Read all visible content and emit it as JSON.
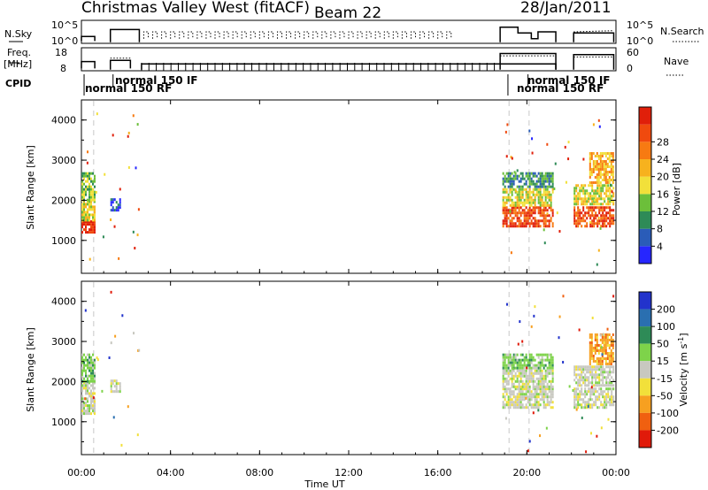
{
  "header": {
    "station": "Christmas Valley West (fitACF)",
    "beam": "Beam 22",
    "date": "28/Jan/2011"
  },
  "params": {
    "nsky_label": "N.Sky",
    "nsky_ticks": [
      "10^5",
      "10^0"
    ],
    "freq_label_1": "Freq.",
    "freq_label_2": "[MHz]",
    "freq_ticks": [
      "18",
      "8"
    ],
    "nsearch_label": "N.Search",
    "nave_label": "Nave",
    "nave_ticks": [
      "60",
      "0"
    ],
    "cpid_label": "CPID",
    "modes": [
      {
        "text": "normal 150 RF",
        "t": 0.1
      },
      {
        "text": "normal 150 IF",
        "t": 1.5
      },
      {
        "text": "normal 150 IF",
        "t": 20.05
      },
      {
        "text": "normal 150 RF",
        "t": 19.1
      }
    ]
  },
  "axes": {
    "xticks": [
      "00:00",
      "04:00",
      "08:00",
      "12:00",
      "16:00",
      "20:00",
      "00:00"
    ],
    "xlabel": "Time UT",
    "ylabel": "Slant Range [km]",
    "yticks": [
      "1000",
      "2000",
      "3000",
      "4000"
    ]
  },
  "power_scale": {
    "label": "Power [dB]",
    "ticks": [
      "4",
      "8",
      "12",
      "16",
      "20",
      "24",
      "28"
    ],
    "colors": [
      "#2626ff",
      "#2a5cb8",
      "#2e8b57",
      "#6cbf3a",
      "#f2e03a",
      "#f7b21e",
      "#f77a12",
      "#f04a0e",
      "#e01f0a"
    ]
  },
  "velocity_scale": {
    "label": "Velocity [m s^-1]",
    "label_main": "Velocity [m s",
    "label_sup": "-1",
    "label_end": "]",
    "ticks": [
      "200",
      "100",
      "50",
      "15",
      "-15",
      "-50",
      "-100",
      "-200"
    ],
    "colors": [
      "#2233cc",
      "#2a6fb0",
      "#2e8b57",
      "#7ed34a",
      "#c8c8c0",
      "#f2e03a",
      "#f7a020",
      "#f06010",
      "#e01a0a"
    ]
  },
  "chart_data": {
    "type": "heatmap",
    "x_range": [
      0,
      24
    ],
    "x_unit": "hours UT",
    "y_range": [
      180,
      4500
    ],
    "y_unit": "km",
    "panels": [
      "power",
      "velocity"
    ],
    "scatter_blocks": [
      {
        "t0": 0.0,
        "t1": 0.6,
        "r0": 1150,
        "r1": 1500,
        "power_level": 8,
        "velocity_level": 4
      },
      {
        "t0": 0.0,
        "t1": 0.6,
        "r0": 1500,
        "r1": 2000,
        "power_level": 4,
        "velocity_level": 4
      },
      {
        "t0": 0.0,
        "t1": 0.6,
        "r0": 2000,
        "r1": 2700,
        "power_level": 3,
        "velocity_level": 3
      },
      {
        "t0": 1.3,
        "t1": 1.8,
        "r0": 1700,
        "r1": 2050,
        "power_level": 1,
        "velocity_level": 4
      },
      {
        "t0": 18.9,
        "t1": 21.2,
        "r0": 1300,
        "r1": 1850,
        "power_level": 7,
        "velocity_level": 4
      },
      {
        "t0": 18.9,
        "t1": 21.2,
        "r0": 1850,
        "r1": 2300,
        "power_level": 4,
        "velocity_level": 4
      },
      {
        "t0": 18.9,
        "t1": 21.2,
        "r0": 2300,
        "r1": 2700,
        "power_level": 2,
        "velocity_level": 3
      },
      {
        "t0": 22.1,
        "t1": 23.9,
        "r0": 1350,
        "r1": 1850,
        "power_level": 7,
        "velocity_level": 4
      },
      {
        "t0": 22.1,
        "t1": 23.9,
        "r0": 1850,
        "r1": 2400,
        "power_level": 4,
        "velocity_level": 4
      },
      {
        "t0": 22.8,
        "t1": 23.9,
        "r0": 2400,
        "r1": 3200,
        "power_level": 5,
        "velocity_level": 6
      }
    ],
    "mode_change_times": [
      0.55,
      19.2,
      20.1
    ]
  }
}
